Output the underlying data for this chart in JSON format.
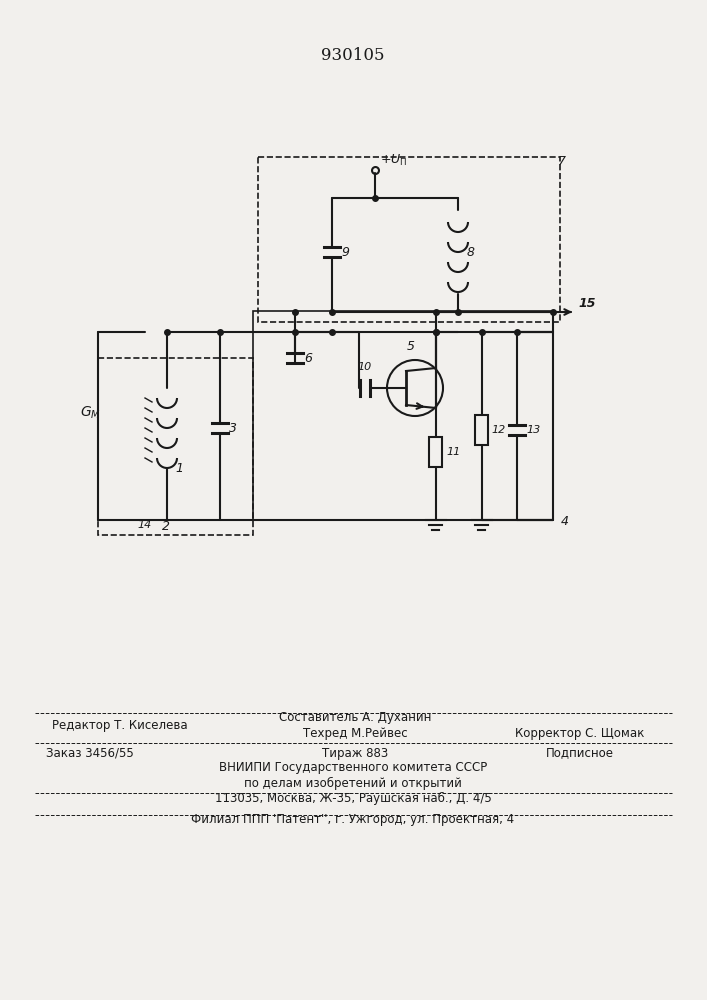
{
  "title": "930105",
  "background_color": "#f2f0ed",
  "line_color": "#1a1a1a",
  "text_color": "#1a1a1a",
  "footer": {
    "line1_left": "Редактор Т. Киселева",
    "line1_center_top": "Составитель А. Духанин",
    "line1_center_bot": "Техред М.Рейвес",
    "line1_right": "Корректор С. Щомак",
    "line2_left": "Заказ 3456/55",
    "line2_center": "Тираж 883",
    "line2_right": "Подписное",
    "line3": "ВНИИПИ Государственного комитета СССР",
    "line4": "по делам изобретений и открытий",
    "line5": "113035, Москва, Ж-35, Раушская наб., Д. 4/5",
    "line6": "Филиал ППП 'Патент'', г. Ужгород, ул. Проектная, 4"
  }
}
